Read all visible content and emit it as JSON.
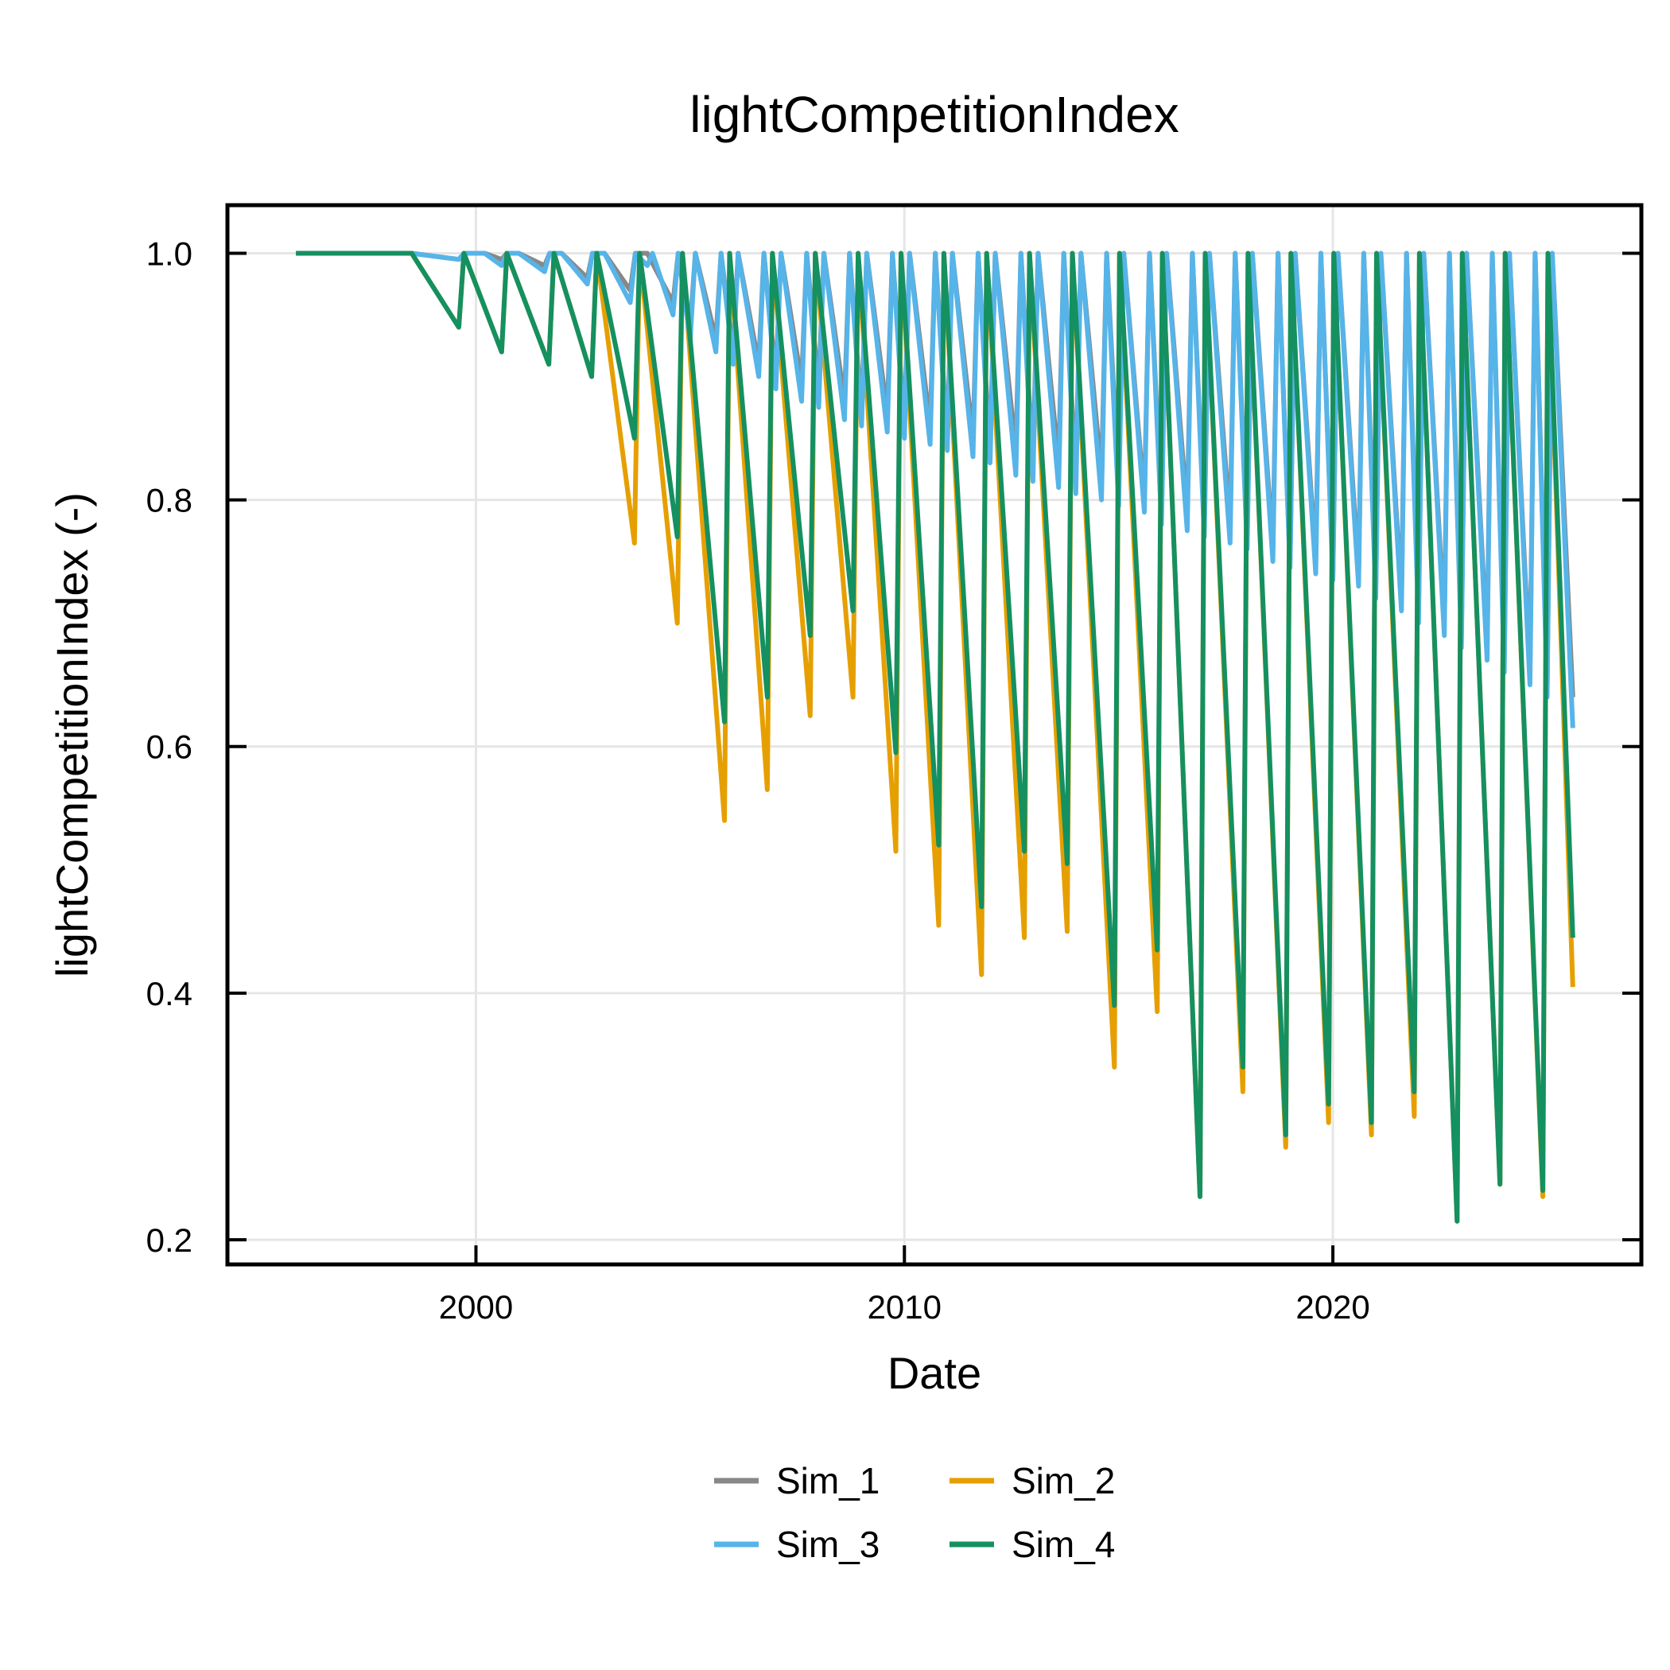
{
  "chart_data": {
    "type": "line",
    "title": "lightCompetitionIndex",
    "xlabel": "Date",
    "ylabel": "lightCompetitionIndex (-)",
    "xlim": [
      1994.2,
      2027.2
    ],
    "ylim": [
      0.18,
      1.039
    ],
    "x_ticks": [
      "2000",
      "2010",
      "2020"
    ],
    "y_ticks": [
      "0.2",
      "0.4",
      "0.6",
      "0.8",
      "1.0"
    ],
    "grid": true,
    "legend_position": "bottom-center",
    "series": [
      {
        "name": "Sim_1",
        "color": "#888888",
        "x": [
          1995.8,
          1998.5,
          1999.6,
          2000.2,
          2000.6,
          2001.0,
          2001.6,
          2002.0,
          2002.6,
          2003.0,
          2003.6,
          2004.0,
          2004.6,
          2005.0,
          2005.6,
          2006.0,
          2006.6,
          2007.0,
          2007.6,
          2008.0,
          2008.6,
          2009.0,
          2009.6,
          2010.0,
          2010.6,
          2011.0,
          2011.6,
          2012.0,
          2012.6,
          2013.0,
          2013.6,
          2014.0,
          2014.6,
          2015.0,
          2015.6,
          2016.0,
          2016.6,
          2017.0,
          2017.6,
          2018.0,
          2018.6,
          2019.0,
          2019.6,
          2020.0,
          2020.6,
          2021.0,
          2021.6,
          2022.0,
          2022.6,
          2023.0,
          2023.6,
          2024.0,
          2024.6,
          2025.0,
          2025.6
        ],
        "y": [
          1.0,
          1.0,
          0.995,
          1.0,
          0.995,
          1.0,
          0.99,
          1.0,
          0.98,
          1.0,
          0.97,
          1.0,
          0.96,
          0.94,
          0.93,
          0.92,
          0.91,
          0.9,
          0.895,
          0.89,
          0.88,
          0.87,
          0.87,
          0.86,
          0.86,
          0.85,
          0.85,
          0.84,
          0.84,
          0.83,
          0.83,
          0.82,
          0.82,
          0.81,
          0.8,
          0.79,
          0.79,
          0.78,
          0.78,
          0.77,
          0.76,
          0.75,
          0.75,
          0.74,
          0.74,
          0.73,
          0.72,
          0.71,
          0.7,
          0.69,
          0.68,
          0.67,
          0.66,
          0.65,
          0.64
        ]
      },
      {
        "name": "Sim_2",
        "color": "#E69F00",
        "x": [
          1995.8,
          1998.5,
          1999.6,
          2000.6,
          2001.7,
          2002.7,
          2003.7,
          2004.7,
          2005.8,
          2006.8,
          2007.8,
          2008.8,
          2009.8,
          2010.8,
          2011.8,
          2012.8,
          2013.8,
          2014.9,
          2015.9,
          2016.9,
          2017.9,
          2018.9,
          2019.9,
          2020.9,
          2021.9,
          2022.9,
          2023.9,
          2024.9,
          2025.6
        ],
        "y": [
          1.0,
          1.0,
          0.94,
          0.92,
          0.91,
          0.9,
          0.765,
          0.7,
          0.54,
          0.565,
          0.625,
          0.64,
          0.515,
          0.455,
          0.415,
          0.445,
          0.45,
          0.34,
          0.385,
          0.235,
          0.32,
          0.275,
          0.295,
          0.285,
          0.3,
          0.215,
          0.245,
          0.235,
          0.405
        ]
      },
      {
        "name": "Sim_3",
        "color": "#56B4E9",
        "x": [
          1995.8,
          1998.5,
          1999.6,
          2000.2,
          2000.6,
          2001.0,
          2001.6,
          2002.0,
          2002.6,
          2003.0,
          2003.6,
          2004.0,
          2004.6,
          2005.0,
          2005.6,
          2006.0,
          2006.6,
          2007.0,
          2007.6,
          2008.0,
          2008.6,
          2009.0,
          2009.6,
          2010.0,
          2010.6,
          2011.0,
          2011.6,
          2012.0,
          2012.6,
          2013.0,
          2013.6,
          2014.0,
          2014.6,
          2015.0,
          2015.6,
          2016.0,
          2016.6,
          2017.0,
          2017.6,
          2018.0,
          2018.6,
          2019.0,
          2019.6,
          2020.0,
          2020.6,
          2021.0,
          2021.6,
          2022.0,
          2022.6,
          2023.0,
          2023.6,
          2024.0,
          2024.6,
          2025.0,
          2025.6
        ],
        "y": [
          1.0,
          1.0,
          0.995,
          1.0,
          0.99,
          1.0,
          0.985,
          1.0,
          0.975,
          1.0,
          0.96,
          0.99,
          0.95,
          0.93,
          0.92,
          0.91,
          0.9,
          0.89,
          0.88,
          0.875,
          0.865,
          0.86,
          0.855,
          0.85,
          0.845,
          0.84,
          0.835,
          0.83,
          0.82,
          0.815,
          0.81,
          0.805,
          0.8,
          0.795,
          0.79,
          0.78,
          0.775,
          0.77,
          0.765,
          0.76,
          0.75,
          0.745,
          0.74,
          0.735,
          0.73,
          0.72,
          0.71,
          0.7,
          0.69,
          0.68,
          0.67,
          0.66,
          0.65,
          0.64,
          0.615
        ]
      },
      {
        "name": "Sim_4",
        "color": "#159060",
        "x": [
          1995.8,
          1998.5,
          1999.6,
          2000.6,
          2001.7,
          2002.7,
          2003.7,
          2004.7,
          2005.8,
          2006.8,
          2007.8,
          2008.8,
          2009.8,
          2010.8,
          2011.8,
          2012.8,
          2013.8,
          2014.9,
          2015.9,
          2016.9,
          2017.9,
          2018.9,
          2019.9,
          2020.9,
          2021.9,
          2022.9,
          2023.9,
          2024.9,
          2025.6
        ],
        "y": [
          1.0,
          1.0,
          0.94,
          0.92,
          0.91,
          0.9,
          0.85,
          0.77,
          0.62,
          0.64,
          0.69,
          0.71,
          0.595,
          0.52,
          0.47,
          0.515,
          0.505,
          0.39,
          0.435,
          0.235,
          0.34,
          0.285,
          0.31,
          0.295,
          0.32,
          0.215,
          0.245,
          0.24,
          0.445
        ]
      }
    ]
  }
}
